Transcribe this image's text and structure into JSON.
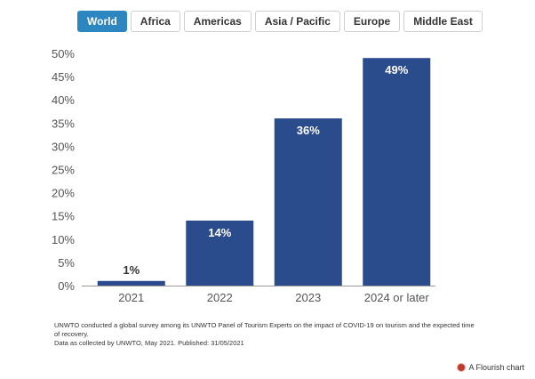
{
  "tabs": [
    {
      "label": "World",
      "active": true
    },
    {
      "label": "Africa",
      "active": false
    },
    {
      "label": "Americas",
      "active": false
    },
    {
      "label": "Asia / Pacific",
      "active": false
    },
    {
      "label": "Europe",
      "active": false
    },
    {
      "label": "Middle East",
      "active": false
    }
  ],
  "colors": {
    "bar": "#2b4c8c",
    "active_tab": "#2e86c1",
    "axis": "#999999",
    "grid": "#dddddd"
  },
  "chart_data": {
    "type": "bar",
    "categories": [
      "2021",
      "2022",
      "2023",
      "2024 or later"
    ],
    "values": [
      1,
      14,
      36,
      49
    ],
    "data_labels": [
      "1%",
      "14%",
      "36%",
      "49%"
    ],
    "ylim": [
      0,
      50
    ],
    "yticks": [
      "0%",
      "5%",
      "10%",
      "15%",
      "20%",
      "25%",
      "30%",
      "35%",
      "40%",
      "45%",
      "50%"
    ],
    "grid": false,
    "title": "",
    "xlabel": "",
    "ylabel": ""
  },
  "footer": {
    "note_line1": "UNWTO conducted a global survey among its UNWTO Panel of Tourism Experts on the impact of COVID-19 on tourism and the expected time of recovery.",
    "note_line2": "Data as collected by UNWTO, May 2021. Published: 31/05/2021",
    "credit": "A Flourish chart"
  }
}
